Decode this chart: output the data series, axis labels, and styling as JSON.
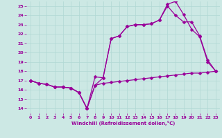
{
  "xlabel": "Windchill (Refroidissement éolien,°C)",
  "background_color": "#cce8e4",
  "line_color": "#990099",
  "grid_color": "#b0d8d4",
  "xlim": [
    -0.5,
    23.5
  ],
  "ylim": [
    13.5,
    25.5
  ],
  "xticks": [
    0,
    1,
    2,
    3,
    4,
    5,
    6,
    7,
    8,
    9,
    10,
    11,
    12,
    13,
    14,
    15,
    16,
    17,
    18,
    19,
    20,
    21,
    22,
    23
  ],
  "yticks": [
    14,
    15,
    16,
    17,
    18,
    19,
    20,
    21,
    22,
    23,
    24,
    25
  ],
  "line1_x": [
    0,
    1,
    2,
    3,
    4,
    5,
    6,
    7,
    8,
    9,
    10,
    11,
    12,
    13,
    14,
    15,
    16,
    17,
    18,
    19,
    20,
    21,
    22,
    23
  ],
  "line1_y": [
    17.0,
    16.7,
    16.6,
    16.3,
    16.3,
    16.2,
    15.7,
    14.0,
    16.5,
    16.7,
    16.8,
    16.9,
    17.0,
    17.1,
    17.2,
    17.3,
    17.4,
    17.5,
    17.6,
    17.7,
    17.8,
    17.8,
    17.9,
    18.0
  ],
  "line2_x": [
    0,
    1,
    2,
    3,
    4,
    5,
    6,
    7,
    8,
    9,
    10,
    11,
    12,
    13,
    14,
    15,
    16,
    17,
    18,
    19,
    20,
    21,
    22,
    23
  ],
  "line2_y": [
    17.0,
    16.7,
    16.6,
    16.3,
    16.3,
    16.2,
    15.7,
    14.0,
    17.4,
    17.3,
    21.5,
    21.8,
    22.8,
    23.0,
    23.0,
    23.1,
    23.5,
    25.0,
    24.0,
    23.3,
    23.3,
    21.8,
    19.2,
    18.0
  ],
  "line3_x": [
    0,
    1,
    2,
    3,
    4,
    5,
    6,
    7,
    8,
    9,
    10,
    11,
    12,
    13,
    14,
    15,
    16,
    17,
    18,
    19,
    20,
    21,
    22,
    23
  ],
  "line3_y": [
    17.0,
    16.7,
    16.6,
    16.3,
    16.3,
    16.2,
    15.7,
    14.0,
    16.5,
    17.3,
    21.5,
    21.8,
    22.8,
    23.0,
    23.0,
    23.1,
    23.5,
    25.2,
    25.5,
    24.1,
    22.5,
    21.7,
    19.0,
    18.0
  ],
  "markersize": 2.5,
  "linewidth": 0.9,
  "tick_labelsize": 4.5,
  "xlabel_fontsize": 5.0
}
